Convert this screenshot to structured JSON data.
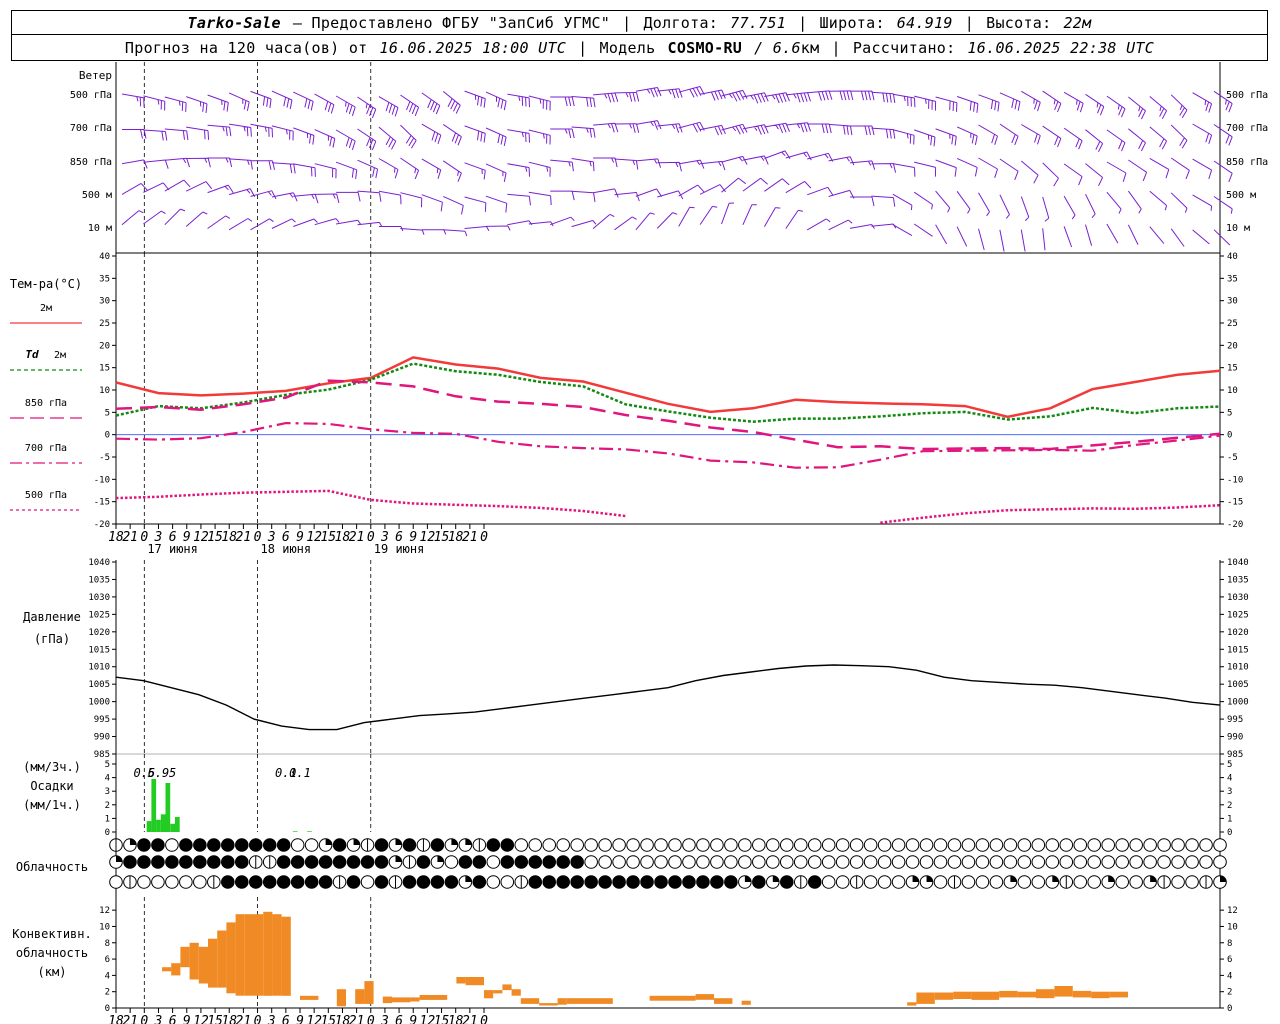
{
  "header": {
    "station": "Tarko-Sale",
    "provider": "– Предоставлено ФГБУ \"ЗапСиб УГМС\"",
    "lon_label": "Долгота:",
    "lon_value": "77.751",
    "lat_label": "Широта:",
    "lat_value": "64.919",
    "alt_label": "Высота:",
    "alt_value": "22м",
    "sep": "|",
    "forecast_text": "Прогноз на 120 часа(ов) от",
    "forecast_start": "16.06.2025 18:00 UTC",
    "model_label": "Модель",
    "model_name": "COSMO-RU",
    "model_res_value": "/ 6.6",
    "model_res_unit": "км",
    "calc_label": "Рассчитано:",
    "calc_time": "16.06.2025 22:38 UTC"
  },
  "time_axis": {
    "hours": [
      "18",
      "21",
      "0",
      "3",
      "6",
      "9",
      "12",
      "15",
      "18",
      "21",
      "0",
      "3",
      "6",
      "9",
      "12",
      "15",
      "18",
      "21",
      "0",
      "3",
      "6",
      "9",
      "12",
      "15",
      "18",
      "21",
      "0"
    ],
    "days": [
      "17 июня",
      "18 июня",
      "19 июня"
    ]
  },
  "chart_data": [
    {
      "type": "wind_barbs",
      "title": "Ветер",
      "levels": [
        "500 гПа",
        "700 гПа",
        "850 гПа",
        "500 м",
        "10 м"
      ]
    },
    {
      "type": "line",
      "title": "Тем-ра(°С)",
      "ylim": [
        -20,
        40
      ],
      "yticks": [
        "40",
        "35",
        "30",
        "25",
        "20",
        "15",
        "10",
        "5",
        "0",
        "-5",
        "-10",
        "-15",
        "-20"
      ],
      "legend": [
        {
          "label": "2м",
          "italic": "",
          "color": "#f23a3a",
          "dash": "none"
        },
        {
          "label": "2м",
          "italic": "Td",
          "color": "#128a12",
          "dash": "4,3"
        },
        {
          "label": "850 гПа",
          "italic": "",
          "color": "#e0157d",
          "dash": "14,6"
        },
        {
          "label": "700 гПа",
          "italic": "",
          "color": "#e0157d",
          "dash": "12,4,3,4"
        },
        {
          "label": "500 гПа",
          "italic": "",
          "color": "#e0157d",
          "dash": "3,3"
        }
      ],
      "x_hours": [
        0,
        3,
        6,
        9,
        12,
        15,
        18,
        21,
        24,
        27,
        30,
        33,
        36,
        39,
        42,
        45,
        48,
        51,
        54,
        57,
        60,
        63,
        66,
        69,
        72,
        75,
        78
      ],
      "series": [
        {
          "name": "2м",
          "values": [
            11.7,
            9.3,
            8.8,
            9.2,
            9.8,
            11.5,
            12.7,
            17.3,
            15.7,
            14.8,
            12.7,
            11.9,
            9.4,
            6.9,
            5.1,
            5.9,
            7.8,
            7.3,
            7.0,
            6.8,
            6.4,
            4.0,
            5.9,
            10.2,
            11.8,
            13.4,
            14.3
          ]
        },
        {
          "name": "Td 2м",
          "values": [
            4.3,
            6.4,
            5.9,
            7.2,
            8.9,
            10.1,
            12.3,
            15.9,
            14.2,
            13.4,
            11.8,
            10.8,
            6.8,
            5.2,
            3.8,
            2.9,
            3.6,
            3.6,
            4.1,
            4.8,
            5.1,
            3.4,
            4.1,
            6.0,
            4.8,
            5.9,
            6.3
          ]
        },
        {
          "name": "850 гПа",
          "values": [
            5.8,
            6.2,
            5.6,
            6.8,
            8.3,
            12.1,
            11.7,
            10.8,
            8.6,
            7.4,
            6.9,
            6.2,
            4.4,
            3.1,
            1.6,
            0.6,
            -1.1,
            -2.8,
            -2.6,
            -3.2,
            -3.1,
            -3.0,
            -3.2,
            -2.4,
            -1.6,
            -0.7,
            0.2
          ]
        },
        {
          "name": "700 гПа",
          "values": [
            -0.9,
            -1.1,
            -0.8,
            0.6,
            2.6,
            2.4,
            1.2,
            0.4,
            0.2,
            -1.6,
            -2.6,
            -3.0,
            -3.3,
            -4.2,
            -5.8,
            -6.2,
            -7.4,
            -7.3,
            -5.6,
            -3.7,
            -3.6,
            -3.5,
            -3.4,
            -3.6,
            -2.3,
            -1.3,
            -0.2
          ]
        },
        {
          "name": "500 гПа",
          "values": [
            -14.2,
            -13.9,
            -13.4,
            -13.0,
            -12.8,
            -12.6,
            -14.6,
            -15.4,
            -15.7,
            -16.0,
            -16.4,
            -17.1,
            -18.2,
            -20.1,
            -22.7,
            -23.0,
            -22.4,
            -22.0,
            -19.7,
            -18.6,
            -17.6,
            -16.9,
            -16.7,
            -16.5,
            -16.6,
            -16.3,
            -15.8
          ]
        }
      ]
    },
    {
      "type": "line",
      "title": "Давление",
      "ylabel": "(гПа)",
      "ylim": [
        985,
        1040
      ],
      "yticks": [
        "1040",
        "1035",
        "1030",
        "1025",
        "1020",
        "1015",
        "1010",
        "1005",
        "1000",
        "995",
        "990",
        "985"
      ],
      "x_hours": [
        0,
        3,
        6,
        9,
        12,
        15,
        18,
        21,
        24,
        27,
        30,
        33,
        36,
        39,
        42,
        45,
        48,
        51,
        54,
        57,
        60,
        63,
        66,
        69,
        72,
        75,
        78,
        81,
        84,
        87,
        90,
        93,
        96,
        99,
        102,
        105,
        108,
        111,
        114,
        117,
        120
      ],
      "series": [
        {
          "name": "",
          "values": [
            1007,
            1006,
            1004,
            1002,
            999,
            995,
            993,
            992,
            992,
            994,
            995,
            996,
            996.5,
            997,
            998,
            999,
            1000,
            1001,
            1002,
            1003,
            1004,
            1006,
            1007.5,
            1008.5,
            1009.5,
            1010.2,
            1010.5,
            1010.3,
            1010,
            1009,
            1007,
            1006,
            1005.5,
            1005,
            1004.7,
            1004,
            1003,
            1002,
            1001,
            999.8,
            999
          ]
        }
      ]
    },
    {
      "type": "bar",
      "title": "Осадки",
      "ylabel_top": "(мм/3ч.)",
      "ylabel_bottom": "(мм/1ч.)",
      "ylim": [
        0,
        5
      ],
      "yticks": [
        "5",
        "4",
        "3",
        "2",
        "1",
        "0"
      ],
      "labels_3h": [
        {
          "hour": 6,
          "text": "0.6"
        },
        {
          "hour": 9,
          "text": "5.9"
        },
        {
          "hour": 12,
          "text": "5"
        },
        {
          "hour": 36,
          "text": "0.1"
        },
        {
          "hour": 39,
          "text": "0.1"
        }
      ],
      "hourly": [
        {
          "hour": 7,
          "value": 0.8
        },
        {
          "hour": 8,
          "value": 3.9
        },
        {
          "hour": 9,
          "value": 0.9
        },
        {
          "hour": 10,
          "value": 1.3
        },
        {
          "hour": 11,
          "value": 3.6
        },
        {
          "hour": 12,
          "value": 0.6
        },
        {
          "hour": 13,
          "value": 1.1
        },
        {
          "hour": 38,
          "value": 0.05
        },
        {
          "hour": 41,
          "value": 0.05
        }
      ]
    },
    {
      "type": "table",
      "title": "Облачность",
      "layers": [
        {
          "name": "upper",
          "codes": "1dff0ffffffff00dfd1fdf1fdd1ff000000000000000000000000000000000000000000000000000000000000000000000000000ff1f0ff1fdf00fffddff"
        },
        {
          "name": "middle",
          "codes": "dfffffffff11ffffffffd1fd0ff0ffffff000000000000000000000000000000000000000000000000000000d00000000000000000000fd0fdf0dff"
        },
        {
          "name": "lower",
          "codes": "01000001ffffffff1f0f1ffffdf001fffffffffffffffdfdf1f001000dd01000d00d100d00d1001d0101010d00d10000"
        }
      ]
    },
    {
      "type": "bar",
      "title": "Конвективн. облачность",
      "ylabel": "(км)",
      "ylim": [
        0,
        13
      ],
      "yticks": [
        "12",
        "10",
        "8",
        "6",
        "4",
        "2",
        "0"
      ],
      "x_range_hours": [
        0,
        120
      ],
      "bars": [
        {
          "from": 5,
          "to": 6,
          "bottom": 4.5,
          "top": 5
        },
        {
          "from": 6,
          "to": 7,
          "bottom": 4,
          "top": 5.5
        },
        {
          "from": 7,
          "to": 8,
          "bottom": 5,
          "top": 7.5
        },
        {
          "from": 8,
          "to": 9,
          "bottom": 3.5,
          "top": 8
        },
        {
          "from": 9,
          "to": 10,
          "bottom": 3,
          "top": 7.5
        },
        {
          "from": 10,
          "to": 11,
          "bottom": 2.5,
          "top": 8.5
        },
        {
          "from": 11,
          "to": 12,
          "bottom": 2.5,
          "top": 9.5
        },
        {
          "from": 12,
          "to": 13,
          "bottom": 1.8,
          "top": 10.5
        },
        {
          "from": 13,
          "to": 14,
          "bottom": 1.5,
          "top": 11.5
        },
        {
          "from": 14,
          "to": 15,
          "bottom": 1.5,
          "top": 11.5
        },
        {
          "from": 15,
          "to": 16,
          "bottom": 1.5,
          "top": 11.5
        },
        {
          "from": 16,
          "to": 17,
          "bottom": 1.5,
          "top": 11.8
        },
        {
          "from": 17,
          "to": 18,
          "bottom": 1.5,
          "top": 11.5
        },
        {
          "from": 18,
          "to": 19,
          "bottom": 1.5,
          "top": 11.2
        },
        {
          "from": 20,
          "to": 22,
          "bottom": 1,
          "top": 1.5
        },
        {
          "from": 24,
          "to": 25,
          "bottom": 0.2,
          "top": 2.3
        },
        {
          "from": 26,
          "to": 27,
          "bottom": 0.5,
          "top": 2.3
        },
        {
          "from": 27,
          "to": 28,
          "bottom": 0.5,
          "top": 3.3
        },
        {
          "from": 29,
          "to": 30,
          "bottom": 0.6,
          "top": 1.4
        },
        {
          "from": 30,
          "to": 32,
          "bottom": 0.7,
          "top": 1.3
        },
        {
          "from": 32,
          "to": 33,
          "bottom": 0.8,
          "top": 1.3
        },
        {
          "from": 33,
          "to": 36,
          "bottom": 1,
          "top": 1.6
        },
        {
          "from": 37,
          "to": 38,
          "bottom": 3,
          "top": 3.8
        },
        {
          "from": 38,
          "to": 40,
          "bottom": 2.8,
          "top": 3.8
        },
        {
          "from": 40,
          "to": 41,
          "bottom": 1.2,
          "top": 2.2
        },
        {
          "from": 41,
          "to": 42,
          "bottom": 1.8,
          "top": 2.2
        },
        {
          "from": 42,
          "to": 43,
          "bottom": 2.2,
          "top": 2.9
        },
        {
          "from": 43,
          "to": 44,
          "bottom": 1.5,
          "top": 2.3
        },
        {
          "from": 44,
          "to": 46,
          "bottom": 0.5,
          "top": 1.2
        },
        {
          "from": 46,
          "to": 48,
          "bottom": 0.3,
          "top": 0.6
        },
        {
          "from": 48,
          "to": 49,
          "bottom": 0.4,
          "top": 1.2
        },
        {
          "from": 49,
          "to": 54,
          "bottom": 0.5,
          "top": 1.2
        },
        {
          "from": 58,
          "to": 63,
          "bottom": 0.9,
          "top": 1.5
        },
        {
          "from": 63,
          "to": 65,
          "bottom": 1.0,
          "top": 1.7
        },
        {
          "from": 65,
          "to": 67,
          "bottom": 0.5,
          "top": 1.2
        },
        {
          "from": 68,
          "to": 69,
          "bottom": 0.4,
          "top": 0.9
        },
        {
          "from": 86,
          "to": 87,
          "bottom": 0.3,
          "top": 0.7
        },
        {
          "from": 87,
          "to": 89,
          "bottom": 0.5,
          "top": 1.9
        },
        {
          "from": 89,
          "to": 91,
          "bottom": 1.0,
          "top": 1.9
        },
        {
          "from": 91,
          "to": 93,
          "bottom": 1.1,
          "top": 2.0
        },
        {
          "from": 93,
          "to": 96,
          "bottom": 1.0,
          "top": 2.0
        },
        {
          "from": 96,
          "to": 98,
          "bottom": 1.3,
          "top": 2.1
        },
        {
          "from": 98,
          "to": 100,
          "bottom": 1.3,
          "top": 2.0
        },
        {
          "from": 100,
          "to": 102,
          "bottom": 1.2,
          "top": 2.3
        },
        {
          "from": 102,
          "to": 104,
          "bottom": 1.4,
          "top": 2.7
        },
        {
          "from": 104,
          "to": 106,
          "bottom": 1.3,
          "top": 2.1
        },
        {
          "from": 106,
          "to": 108,
          "bottom": 1.2,
          "top": 2.0
        },
        {
          "from": 108,
          "to": 110,
          "bottom": 1.3,
          "top": 2.0
        }
      ]
    }
  ]
}
